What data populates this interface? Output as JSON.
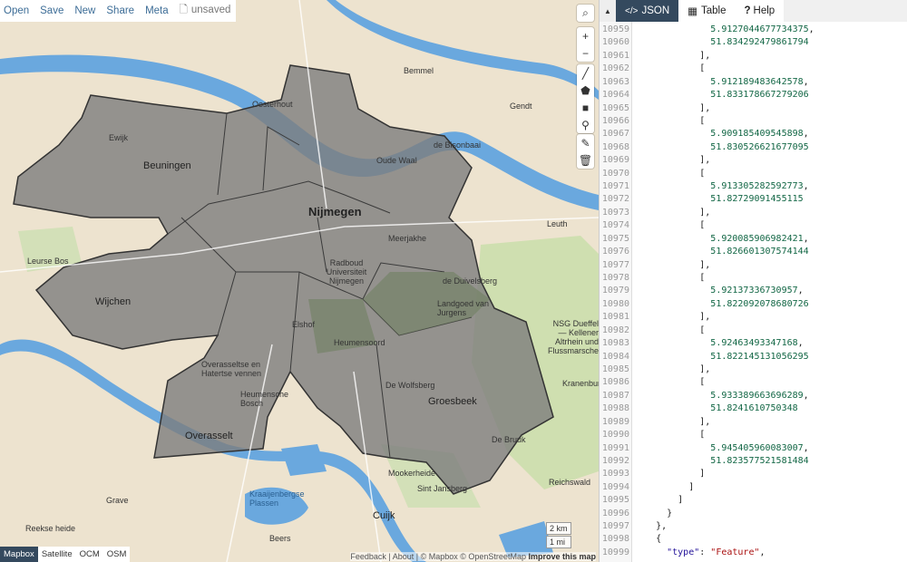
{
  "menu": {
    "items": [
      "Open",
      "Save",
      "New",
      "Share",
      "Meta"
    ],
    "file_status": "unsaved"
  },
  "map_controls": {
    "search": "search-icon",
    "zoom_in": "+",
    "zoom_out": "−",
    "draw": [
      "line-icon",
      "polygon-icon",
      "rectangle-icon",
      "marker-icon"
    ],
    "edit": [
      "edit-icon",
      "trash-icon"
    ]
  },
  "layers": {
    "options": [
      "Mapbox",
      "Satellite",
      "OCM",
      "OSM"
    ],
    "active": "Mapbox"
  },
  "scale": {
    "metric": "2 km",
    "imperial": "1 mi"
  },
  "attribution": {
    "text": "Feedback | About | © Mapbox © OpenStreetMap",
    "improve": "Improve this map"
  },
  "places": {
    "nijmegen": "Nijmegen",
    "beuningen": "Beuningen",
    "wijchen": "Wijchen",
    "groesbeek": "Groesbeek",
    "overasselt": "Overasselt",
    "ewijk": "Ewijk",
    "oosterhout": "Oosterhout",
    "bemmel": "Bemmel",
    "gendt": "Gendt",
    "leuth": "Leuth",
    "cuijk": "Cuijk",
    "grave": "Grave",
    "beers": "Beers",
    "heumensoord": "Heumensoord",
    "de_duivelsberg": "de Duivelsberg",
    "landgoed": "Landgoed van Jurgens",
    "nsg": "NSG Dueffel — Kellener Altrhein und Flussmarschen",
    "kranenburg": "Kranenburg",
    "mookerheide": "Mookerheide",
    "de_wolfsberg": "De Wolfsberg",
    "de_bruuk": "De Bruuk",
    "reichswald": "Reichswald",
    "leurse_bos": "Leurse Bos",
    "reekse_heide": "Reekse heide",
    "kraaijenbergse": "Kraaijenbergse Plassen",
    "radboud": "Radboud Universiteit Nijmegen",
    "elshof": "Elshof",
    "sint_jansberg": "Sint Jansberg",
    "heumensche": "Heumensche Bosch",
    "overasselt_venn": "Overasseltse en Hatertse vennen",
    "de_bisonbaai": "de Bisonbaai",
    "meerjakhe": "Meerjakhe",
    "oude_waal": "Oude Waal"
  },
  "colors": {
    "accent": "#34495e",
    "water": "#6aa8de",
    "land": "#ede3cf",
    "polygon": "#7d7d7d",
    "forest": "#c8dca6"
  },
  "panel": {
    "tabs": [
      {
        "label": "JSON",
        "icon": "code-icon",
        "active": true
      },
      {
        "label": "Table",
        "icon": "table-icon"
      },
      {
        "label": "Help",
        "icon": "question-icon"
      }
    ]
  },
  "code_lines": [
    {
      "n": "10959",
      "t": "              ",
      "v": "5.9127044677734375",
      "e": ",",
      "c": "n"
    },
    {
      "n": "10960",
      "t": "              ",
      "v": "51.834292479861794",
      "e": "",
      "c": "n"
    },
    {
      "n": "10961",
      "t": "            ",
      "v": "],",
      "e": "",
      "c": ""
    },
    {
      "n": "10962",
      "t": "            ",
      "v": "[",
      "e": "",
      "c": ""
    },
    {
      "n": "10963",
      "t": "              ",
      "v": "5.912189483642578",
      "e": ",",
      "c": "n"
    },
    {
      "n": "10964",
      "t": "              ",
      "v": "51.833178667279206",
      "e": "",
      "c": "n"
    },
    {
      "n": "10965",
      "t": "            ",
      "v": "],",
      "e": "",
      "c": ""
    },
    {
      "n": "10966",
      "t": "            ",
      "v": "[",
      "e": "",
      "c": ""
    },
    {
      "n": "10967",
      "t": "              ",
      "v": "5.909185409545898",
      "e": ",",
      "c": "n"
    },
    {
      "n": "10968",
      "t": "              ",
      "v": "51.830526621677095",
      "e": "",
      "c": "n"
    },
    {
      "n": "10969",
      "t": "            ",
      "v": "],",
      "e": "",
      "c": ""
    },
    {
      "n": "10970",
      "t": "            ",
      "v": "[",
      "e": "",
      "c": ""
    },
    {
      "n": "10971",
      "t": "              ",
      "v": "5.913305282592773",
      "e": ",",
      "c": "n"
    },
    {
      "n": "10972",
      "t": "              ",
      "v": "51.82729091455115",
      "e": "",
      "c": "n"
    },
    {
      "n": "10973",
      "t": "            ",
      "v": "],",
      "e": "",
      "c": ""
    },
    {
      "n": "10974",
      "t": "            ",
      "v": "[",
      "e": "",
      "c": ""
    },
    {
      "n": "10975",
      "t": "              ",
      "v": "5.920085906982421",
      "e": ",",
      "c": "n"
    },
    {
      "n": "10976",
      "t": "              ",
      "v": "51.826601307574144",
      "e": "",
      "c": "n"
    },
    {
      "n": "10977",
      "t": "            ",
      "v": "],",
      "e": "",
      "c": ""
    },
    {
      "n": "10978",
      "t": "            ",
      "v": "[",
      "e": "",
      "c": ""
    },
    {
      "n": "10979",
      "t": "              ",
      "v": "5.92137336730957",
      "e": ",",
      "c": "n"
    },
    {
      "n": "10980",
      "t": "              ",
      "v": "51.822092078680726",
      "e": "",
      "c": "n"
    },
    {
      "n": "10981",
      "t": "            ",
      "v": "],",
      "e": "",
      "c": ""
    },
    {
      "n": "10982",
      "t": "            ",
      "v": "[",
      "e": "",
      "c": ""
    },
    {
      "n": "10983",
      "t": "              ",
      "v": "5.92463493347168",
      "e": ",",
      "c": "n"
    },
    {
      "n": "10984",
      "t": "              ",
      "v": "51.822145131056295",
      "e": "",
      "c": "n"
    },
    {
      "n": "10985",
      "t": "            ",
      "v": "],",
      "e": "",
      "c": ""
    },
    {
      "n": "10986",
      "t": "            ",
      "v": "[",
      "e": "",
      "c": ""
    },
    {
      "n": "10987",
      "t": "              ",
      "v": "5.933389663696289",
      "e": ",",
      "c": "n"
    },
    {
      "n": "10988",
      "t": "              ",
      "v": "51.8241610750348",
      "e": "",
      "c": "n"
    },
    {
      "n": "10989",
      "t": "            ",
      "v": "],",
      "e": "",
      "c": ""
    },
    {
      "n": "10990",
      "t": "            ",
      "v": "[",
      "e": "",
      "c": ""
    },
    {
      "n": "10991",
      "t": "              ",
      "v": "5.945405960083007",
      "e": ",",
      "c": "n"
    },
    {
      "n": "10992",
      "t": "              ",
      "v": "51.823577521581484",
      "e": "",
      "c": "n"
    },
    {
      "n": "10993",
      "t": "            ",
      "v": "]",
      "e": "",
      "c": ""
    },
    {
      "n": "10994",
      "t": "          ",
      "v": "]",
      "e": "",
      "c": ""
    },
    {
      "n": "10995",
      "t": "        ",
      "v": "]",
      "e": "",
      "c": ""
    },
    {
      "n": "10996",
      "t": "      ",
      "v": "}",
      "e": "",
      "c": ""
    },
    {
      "n": "10997",
      "t": "    ",
      "v": "},",
      "e": "",
      "c": ""
    },
    {
      "n": "10998",
      "t": "    ",
      "v": "{",
      "e": "",
      "c": ""
    },
    {
      "n": "10999",
      "t": "      ",
      "v": "\"type\": \"Feature\",",
      "e": "",
      "c": "kv"
    }
  ]
}
